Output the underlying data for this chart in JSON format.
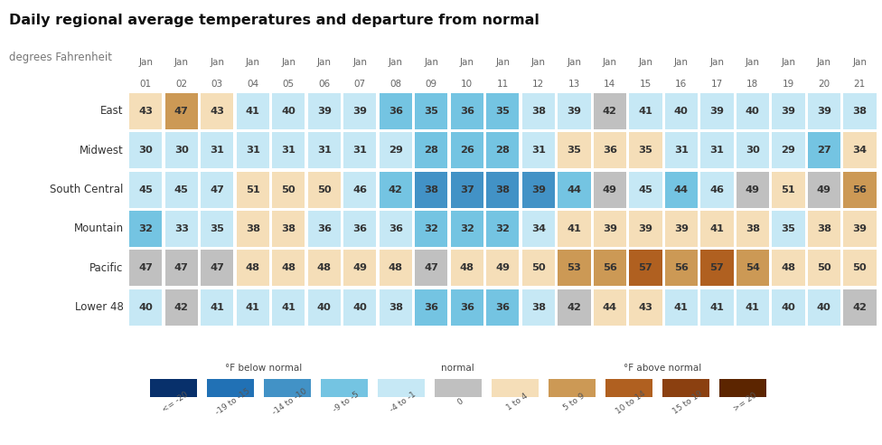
{
  "title": "Daily regional average temperatures and departure from normal",
  "subtitle": "degrees Fahrenheit",
  "regions": [
    "East",
    "Midwest",
    "South Central",
    "Mountain",
    "Pacific",
    "Lower 48"
  ],
  "col_labels_top": [
    "Jan",
    "Jan",
    "Jan",
    "Jan",
    "Jan",
    "Jan",
    "Jan",
    "Jan",
    "Jan",
    "Jan",
    "Jan",
    "Jan",
    "Jan",
    "Jan",
    "Jan",
    "Jan",
    "Jan",
    "Jan",
    "Jan",
    "Jan",
    "Jan"
  ],
  "col_labels_bot": [
    "01",
    "02",
    "03",
    "04",
    "05",
    "06",
    "07",
    "08",
    "09",
    "10",
    "11",
    "12",
    "13",
    "14",
    "15",
    "16",
    "17",
    "18",
    "19",
    "20",
    "21"
  ],
  "values": [
    [
      43,
      47,
      43,
      41,
      40,
      39,
      39,
      36,
      35,
      36,
      35,
      38,
      39,
      42,
      41,
      40,
      39,
      40,
      39,
      39,
      38
    ],
    [
      30,
      30,
      31,
      31,
      31,
      31,
      31,
      29,
      28,
      26,
      28,
      31,
      35,
      36,
      35,
      31,
      31,
      30,
      29,
      27,
      34
    ],
    [
      45,
      45,
      47,
      51,
      50,
      50,
      46,
      42,
      38,
      37,
      38,
      39,
      44,
      49,
      45,
      44,
      46,
      49,
      51,
      49,
      56
    ],
    [
      32,
      33,
      35,
      38,
      38,
      36,
      36,
      36,
      32,
      32,
      32,
      34,
      41,
      39,
      39,
      39,
      41,
      38,
      35,
      38,
      39
    ],
    [
      47,
      47,
      47,
      48,
      48,
      48,
      49,
      48,
      47,
      48,
      49,
      50,
      53,
      56,
      57,
      56,
      57,
      54,
      48,
      50,
      50
    ],
    [
      40,
      42,
      41,
      41,
      41,
      40,
      40,
      38,
      36,
      36,
      36,
      38,
      42,
      44,
      43,
      41,
      41,
      41,
      40,
      40,
      42
    ]
  ],
  "departures": [
    [
      1,
      5,
      1,
      -1,
      -2,
      -3,
      -3,
      -6,
      -7,
      -6,
      -7,
      -4,
      -3,
      0,
      -1,
      -2,
      -3,
      -2,
      -3,
      -3,
      -4
    ],
    [
      -3,
      -3,
      -2,
      -2,
      -2,
      -2,
      -2,
      -4,
      -5,
      -7,
      -5,
      -2,
      2,
      3,
      2,
      -2,
      -2,
      -3,
      -4,
      -6,
      1
    ],
    [
      -4,
      -4,
      -2,
      2,
      1,
      1,
      -3,
      -7,
      -11,
      -12,
      -11,
      -10,
      -5,
      0,
      -4,
      -5,
      -3,
      0,
      2,
      0,
      7
    ],
    [
      -5,
      -4,
      -2,
      1,
      1,
      -1,
      -1,
      -1,
      -5,
      -5,
      -5,
      -3,
      4,
      2,
      2,
      2,
      4,
      1,
      -2,
      1,
      2
    ],
    [
      0,
      0,
      0,
      1,
      1,
      1,
      2,
      1,
      0,
      1,
      2,
      3,
      6,
      9,
      10,
      9,
      10,
      7,
      1,
      3,
      3
    ],
    [
      -2,
      0,
      -1,
      -1,
      -1,
      -2,
      -2,
      -4,
      -6,
      -6,
      -6,
      -4,
      0,
      2,
      1,
      -1,
      -1,
      -1,
      -2,
      -2,
      0
    ]
  ],
  "color_scale": {
    "lte_neg20": "#08306b",
    "neg19_neg15": "#2171b5",
    "neg14_neg10": "#4292c6",
    "neg9_neg5": "#74c4e2",
    "neg4_neg1": "#c6e8f5",
    "zero": "#c0c0c0",
    "pos1_4": "#f5deb8",
    "pos5_9": "#cc9955",
    "pos10_14": "#b06020",
    "pos15_19": "#8b4010",
    "gte_pos20": "#5c2500"
  },
  "legend_labels": [
    "<= -20",
    "-19 to -15",
    "-14 to -10",
    "-9 to -5",
    "-4 to -1",
    "0",
    "1 to 4",
    "5 to 9",
    "10 to 14",
    "15 to 19",
    ">= 20"
  ],
  "legend_colors": [
    "#08306b",
    "#2171b5",
    "#4292c6",
    "#74c4e2",
    "#c6e8f5",
    "#c0c0c0",
    "#f5deb8",
    "#cc9955",
    "#b06020",
    "#8b4010",
    "#5c2500"
  ],
  "background_color": "#ffffff",
  "text_color": "#333333",
  "header_color": "#666666"
}
